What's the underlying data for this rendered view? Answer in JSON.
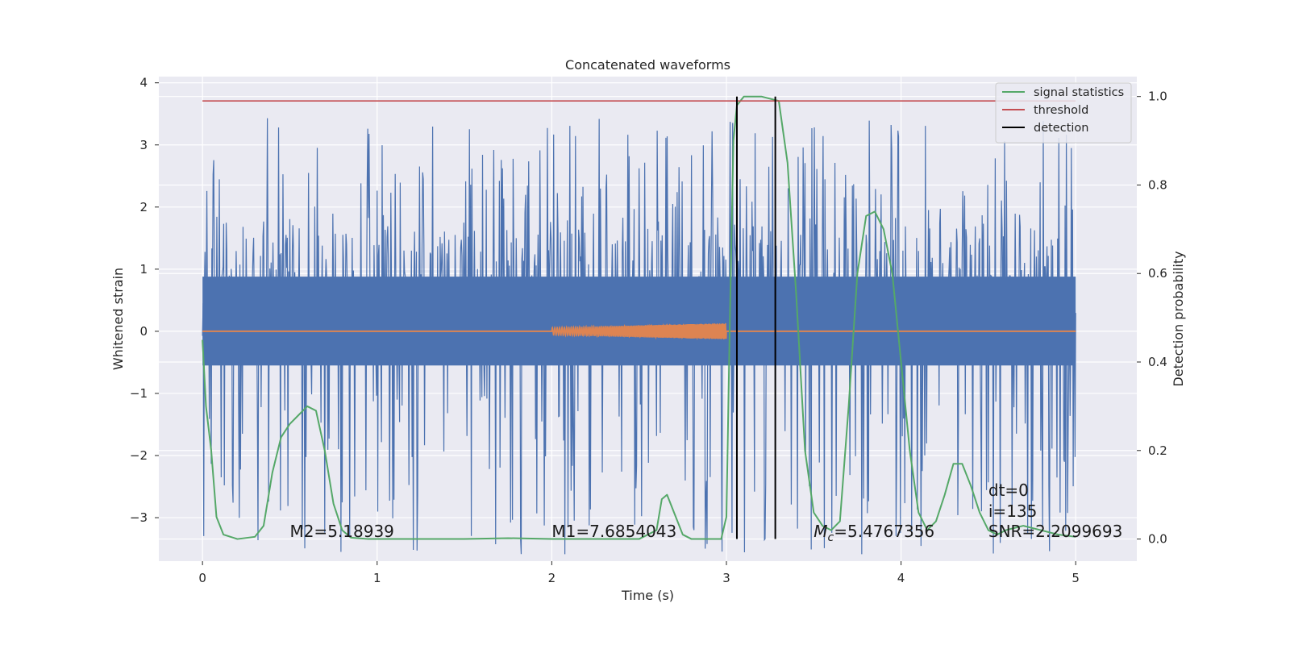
{
  "chart_data": {
    "type": "line",
    "title": "Concatenated waveforms",
    "xlabel": "Time (s)",
    "ylabel_left": "Whitened strain",
    "ylabel_right": "Detection probability",
    "xlim": [
      -0.25,
      5.35
    ],
    "ylim_left": [
      -3.7,
      4.1
    ],
    "ylim_right": [
      -0.05,
      1.045
    ],
    "x_ticks": [
      0,
      1,
      2,
      3,
      4,
      5
    ],
    "x_tick_labels": [
      "0",
      "1",
      "2",
      "3",
      "4",
      "5"
    ],
    "y_ticks_left": [
      -3,
      -2,
      -1,
      0,
      1,
      2,
      3,
      4
    ],
    "y_tick_labels_left": [
      "−3",
      "−2",
      "−1",
      "0",
      "1",
      "2",
      "3",
      "4"
    ],
    "y_ticks_right": [
      0.0,
      0.2,
      0.4,
      0.6,
      0.8,
      1.0
    ],
    "y_tick_labels_right": [
      "0.0",
      "0.2",
      "0.4",
      "0.6",
      "0.8",
      "1.0"
    ],
    "grid": true,
    "legend_position": "top-right",
    "legend": [
      {
        "label": "signal statistics",
        "color": "#55a868"
      },
      {
        "label": "threshold",
        "color": "#c44e52"
      },
      {
        "label": "detection",
        "color": "#000000"
      }
    ],
    "series": [
      {
        "kind": "noise_strain",
        "axis": "left",
        "color": "#4c72b0",
        "x_range": [
          0,
          5
        ],
        "y_core_range": [
          -0.5,
          0.9
        ],
        "y_peak_max": 3.75,
        "y_peak_min": -3.4
      },
      {
        "kind": "waveform",
        "axis": "left",
        "color": "#dd8452",
        "x": [
          0,
          2.0,
          3.0,
          5.0
        ],
        "y": [
          0,
          0,
          0,
          0
        ],
        "chirp_x_range": [
          2.0,
          3.0
        ],
        "chirp_amplitude": [
          0.06,
          0.13
        ]
      },
      {
        "name": "signal statistics",
        "axis": "right",
        "color": "#55a868",
        "x": [
          0.0,
          0.02,
          0.05,
          0.08,
          0.12,
          0.2,
          0.3,
          0.35,
          0.4,
          0.45,
          0.5,
          0.55,
          0.6,
          0.65,
          0.7,
          0.75,
          0.8,
          0.85,
          0.95,
          1.5,
          1.75,
          2.0,
          2.5,
          2.6,
          2.63,
          2.66,
          2.7,
          2.75,
          2.8,
          2.9,
          2.97,
          3.0,
          3.02,
          3.04,
          3.06,
          3.1,
          3.2,
          3.3,
          3.35,
          3.4,
          3.45,
          3.5,
          3.55,
          3.6,
          3.65,
          3.7,
          3.75,
          3.8,
          3.85,
          3.9,
          3.95,
          4.0,
          4.05,
          4.1,
          4.15,
          4.2,
          4.25,
          4.3,
          4.35,
          4.4,
          4.45,
          4.5,
          4.55,
          4.6,
          4.7,
          4.8,
          4.9,
          5.0
        ],
        "y": [
          0.45,
          0.3,
          0.2,
          0.05,
          0.01,
          0.0,
          0.005,
          0.03,
          0.15,
          0.23,
          0.26,
          0.28,
          0.3,
          0.29,
          0.2,
          0.08,
          0.02,
          0.003,
          0.0,
          0.0,
          0.002,
          0.0,
          0.0,
          0.02,
          0.09,
          0.1,
          0.06,
          0.01,
          0.0,
          0.0,
          0.0,
          0.05,
          0.5,
          0.9,
          0.98,
          1.0,
          1.0,
          0.99,
          0.85,
          0.55,
          0.2,
          0.06,
          0.03,
          0.02,
          0.04,
          0.3,
          0.6,
          0.73,
          0.74,
          0.7,
          0.6,
          0.4,
          0.2,
          0.06,
          0.02,
          0.04,
          0.1,
          0.17,
          0.17,
          0.12,
          0.06,
          0.02,
          0.01,
          0.02,
          0.03,
          0.02,
          0.01,
          0.005
        ]
      },
      {
        "name": "threshold",
        "axis": "right",
        "color": "#c44e52",
        "x": [
          0,
          5
        ],
        "y": [
          0.99,
          0.99
        ]
      },
      {
        "name": "detection",
        "axis": "right",
        "color": "#000000",
        "vlines_x": [
          3.06,
          3.28
        ],
        "vline_y": [
          0.0,
          1.0
        ]
      }
    ],
    "annotations": [
      {
        "text": "M2=5.18939",
        "x": 0.5,
        "y": 0.005
      },
      {
        "text": "M1=7.6854043",
        "x": 2.0,
        "y": 0.005
      },
      {
        "text": "M_c=5.4767356",
        "x": 3.5,
        "y": 0.005
      },
      {
        "text": "dt=0",
        "x": 4.5,
        "y": 0.098
      },
      {
        "text": "i=135",
        "x": 4.5,
        "y": 0.05
      },
      {
        "text": "SNR=2.2099693",
        "x": 4.5,
        "y": 0.005
      }
    ]
  }
}
